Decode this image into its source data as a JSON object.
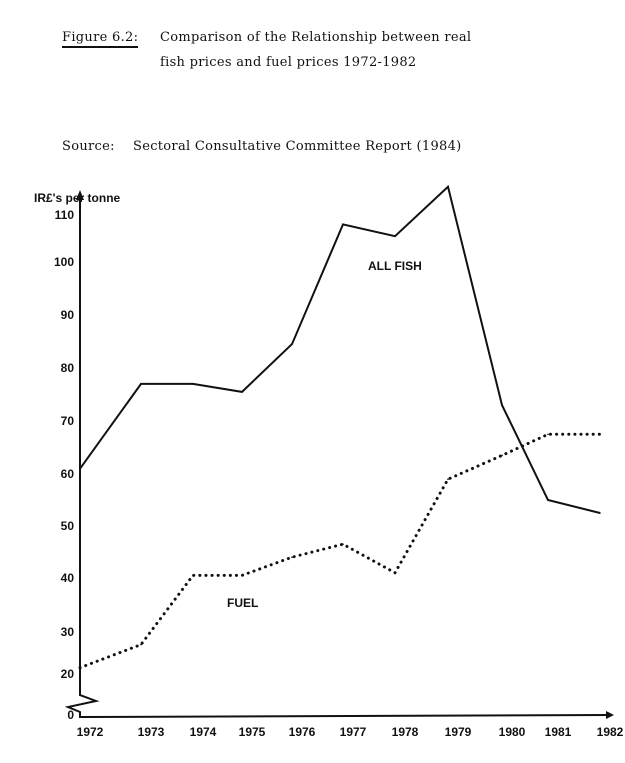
{
  "caption": {
    "figure_label": "Figure 6.2:",
    "title_line1": "Comparison of the Relationship between real",
    "title_line2": "fish prices and fuel prices 1972-1982",
    "source_label": "Source:",
    "source_text": "Sectoral Consultative Committee Report (1984)"
  },
  "chart_data": {
    "type": "line",
    "title": "Comparison of the Relationship between real fish prices and fuel prices 1972-1982",
    "xlabel": "",
    "ylabel": "IR£'s per tonne",
    "x": [
      "1972",
      "1973",
      "1974",
      "1975",
      "1976",
      "1977",
      "1978",
      "1979",
      "1980",
      "1981",
      "1982"
    ],
    "x_tick_labels": [
      "1972",
      "1973",
      "1974",
      "1975",
      "1976",
      "1977",
      "1978",
      "1979",
      "1980",
      "1981",
      "1982"
    ],
    "y_ticks": [
      "0",
      "20",
      "30",
      "40",
      "50",
      "60",
      "70",
      "80",
      "90",
      "100",
      "110"
    ],
    "ylim": [
      0,
      118
    ],
    "axis_break": "between 0 and 20",
    "grid": false,
    "series": [
      {
        "name": "ALL FISH",
        "style": "solid",
        "values": [
          61,
          77,
          77,
          75.5,
          84.5,
          108,
          105.5,
          116,
          73,
          55,
          52.5
        ]
      },
      {
        "name": "FUEL",
        "style": "dotted",
        "values": [
          21.5,
          27,
          40.5,
          40.5,
          44,
          46.5,
          41,
          59,
          63.5,
          67.5,
          67.5
        ]
      }
    ],
    "annotations": [
      "ALL FISH",
      "FUEL"
    ]
  }
}
